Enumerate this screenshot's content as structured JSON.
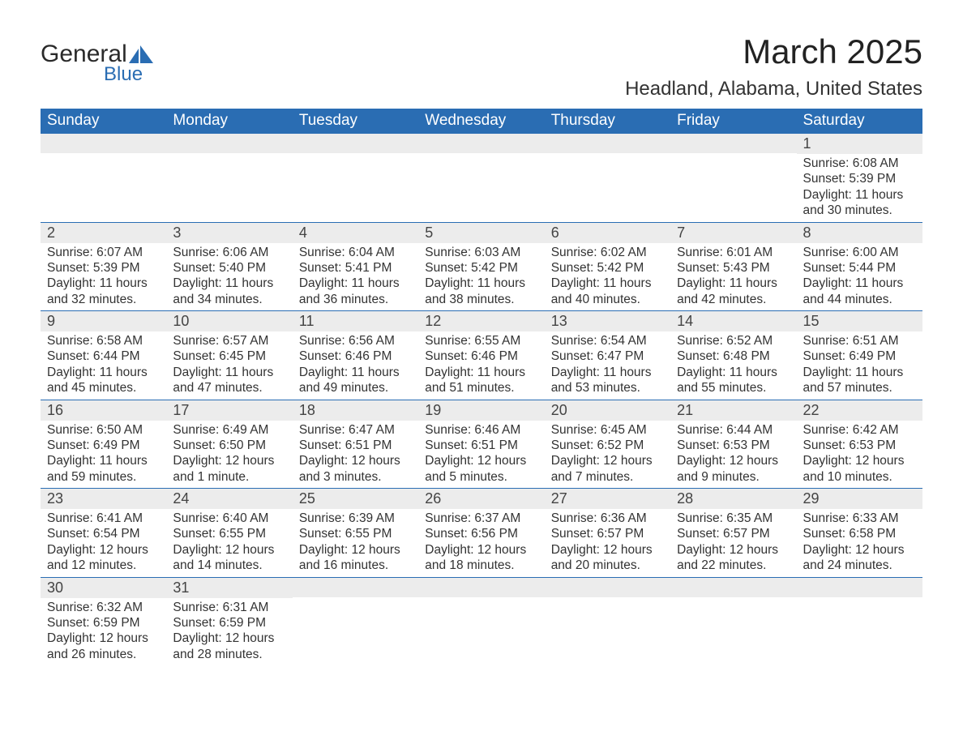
{
  "brand": {
    "line1": "General",
    "line2": "Blue"
  },
  "title": "March 2025",
  "location": "Headland, Alabama, United States",
  "colors": {
    "header_bg": "#2a6db3",
    "header_text": "#ffffff",
    "daynum_bg": "#ececec",
    "row_border": "#2a6db3",
    "body_text": "#333333",
    "page_bg": "#ffffff"
  },
  "typography": {
    "title_fontsize": 42,
    "location_fontsize": 24,
    "dayheader_fontsize": 19,
    "daynum_fontsize": 18,
    "body_fontsize": 15.5
  },
  "layout": {
    "columns": 7,
    "first_day_column": 6,
    "days_in_month": 31
  },
  "day_headers": [
    "Sunday",
    "Monday",
    "Tuesday",
    "Wednesday",
    "Thursday",
    "Friday",
    "Saturday"
  ],
  "days": [
    {
      "n": 1,
      "sunrise": "6:08 AM",
      "sunset": "5:39 PM",
      "daylight": "11 hours and 30 minutes."
    },
    {
      "n": 2,
      "sunrise": "6:07 AM",
      "sunset": "5:39 PM",
      "daylight": "11 hours and 32 minutes."
    },
    {
      "n": 3,
      "sunrise": "6:06 AM",
      "sunset": "5:40 PM",
      "daylight": "11 hours and 34 minutes."
    },
    {
      "n": 4,
      "sunrise": "6:04 AM",
      "sunset": "5:41 PM",
      "daylight": "11 hours and 36 minutes."
    },
    {
      "n": 5,
      "sunrise": "6:03 AM",
      "sunset": "5:42 PM",
      "daylight": "11 hours and 38 minutes."
    },
    {
      "n": 6,
      "sunrise": "6:02 AM",
      "sunset": "5:42 PM",
      "daylight": "11 hours and 40 minutes."
    },
    {
      "n": 7,
      "sunrise": "6:01 AM",
      "sunset": "5:43 PM",
      "daylight": "11 hours and 42 minutes."
    },
    {
      "n": 8,
      "sunrise": "6:00 AM",
      "sunset": "5:44 PM",
      "daylight": "11 hours and 44 minutes."
    },
    {
      "n": 9,
      "sunrise": "6:58 AM",
      "sunset": "6:44 PM",
      "daylight": "11 hours and 45 minutes."
    },
    {
      "n": 10,
      "sunrise": "6:57 AM",
      "sunset": "6:45 PM",
      "daylight": "11 hours and 47 minutes."
    },
    {
      "n": 11,
      "sunrise": "6:56 AM",
      "sunset": "6:46 PM",
      "daylight": "11 hours and 49 minutes."
    },
    {
      "n": 12,
      "sunrise": "6:55 AM",
      "sunset": "6:46 PM",
      "daylight": "11 hours and 51 minutes."
    },
    {
      "n": 13,
      "sunrise": "6:54 AM",
      "sunset": "6:47 PM",
      "daylight": "11 hours and 53 minutes."
    },
    {
      "n": 14,
      "sunrise": "6:52 AM",
      "sunset": "6:48 PM",
      "daylight": "11 hours and 55 minutes."
    },
    {
      "n": 15,
      "sunrise": "6:51 AM",
      "sunset": "6:49 PM",
      "daylight": "11 hours and 57 minutes."
    },
    {
      "n": 16,
      "sunrise": "6:50 AM",
      "sunset": "6:49 PM",
      "daylight": "11 hours and 59 minutes."
    },
    {
      "n": 17,
      "sunrise": "6:49 AM",
      "sunset": "6:50 PM",
      "daylight": "12 hours and 1 minute."
    },
    {
      "n": 18,
      "sunrise": "6:47 AM",
      "sunset": "6:51 PM",
      "daylight": "12 hours and 3 minutes."
    },
    {
      "n": 19,
      "sunrise": "6:46 AM",
      "sunset": "6:51 PM",
      "daylight": "12 hours and 5 minutes."
    },
    {
      "n": 20,
      "sunrise": "6:45 AM",
      "sunset": "6:52 PM",
      "daylight": "12 hours and 7 minutes."
    },
    {
      "n": 21,
      "sunrise": "6:44 AM",
      "sunset": "6:53 PM",
      "daylight": "12 hours and 9 minutes."
    },
    {
      "n": 22,
      "sunrise": "6:42 AM",
      "sunset": "6:53 PM",
      "daylight": "12 hours and 10 minutes."
    },
    {
      "n": 23,
      "sunrise": "6:41 AM",
      "sunset": "6:54 PM",
      "daylight": "12 hours and 12 minutes."
    },
    {
      "n": 24,
      "sunrise": "6:40 AM",
      "sunset": "6:55 PM",
      "daylight": "12 hours and 14 minutes."
    },
    {
      "n": 25,
      "sunrise": "6:39 AM",
      "sunset": "6:55 PM",
      "daylight": "12 hours and 16 minutes."
    },
    {
      "n": 26,
      "sunrise": "6:37 AM",
      "sunset": "6:56 PM",
      "daylight": "12 hours and 18 minutes."
    },
    {
      "n": 27,
      "sunrise": "6:36 AM",
      "sunset": "6:57 PM",
      "daylight": "12 hours and 20 minutes."
    },
    {
      "n": 28,
      "sunrise": "6:35 AM",
      "sunset": "6:57 PM",
      "daylight": "12 hours and 22 minutes."
    },
    {
      "n": 29,
      "sunrise": "6:33 AM",
      "sunset": "6:58 PM",
      "daylight": "12 hours and 24 minutes."
    },
    {
      "n": 30,
      "sunrise": "6:32 AM",
      "sunset": "6:59 PM",
      "daylight": "12 hours and 26 minutes."
    },
    {
      "n": 31,
      "sunrise": "6:31 AM",
      "sunset": "6:59 PM",
      "daylight": "12 hours and 28 minutes."
    }
  ],
  "labels": {
    "sunrise": "Sunrise",
    "sunset": "Sunset",
    "daylight": "Daylight"
  }
}
